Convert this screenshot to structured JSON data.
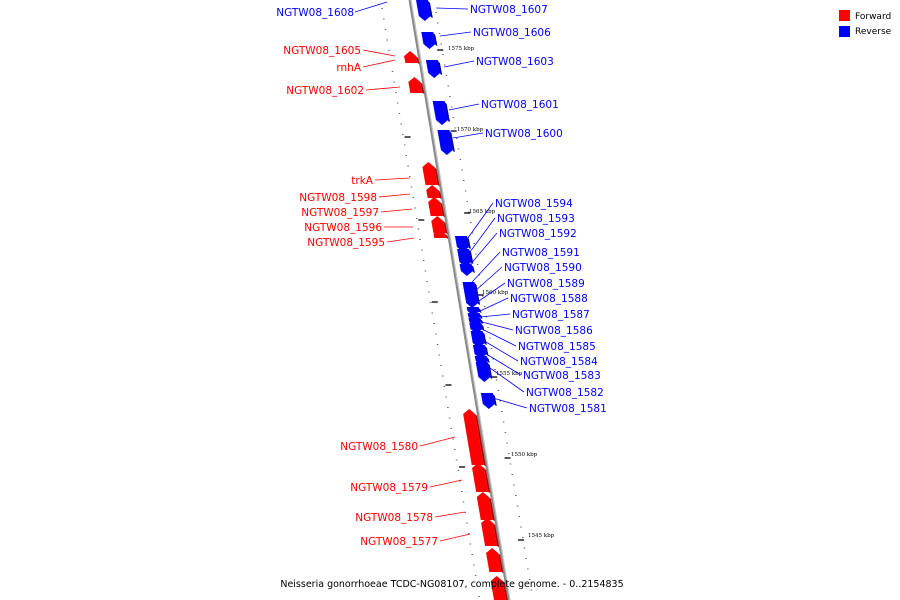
{
  "caption": "Neisseria gonorrhoeae TCDC-NG08107, complete genome. - 0..2154835",
  "legend": [
    {
      "label": "Forward",
      "color": "#ff0000"
    },
    {
      "label": "Reverse",
      "color": "#0000ff"
    }
  ],
  "colors": {
    "forward": "#ff0000",
    "reverse": "#0000ff",
    "backbone": "#808080"
  },
  "scale_ticks": [
    "1575 kbp",
    "1570 kbp",
    "1565 kbp",
    "1560 kbp",
    "1555 kbp",
    "1550 kbp",
    "1545 kbp"
  ],
  "forward_genes": [
    "NGTW08_1605",
    "rnhA",
    "NGTW08_1602",
    "trkA",
    "NGTW08_1598",
    "NGTW08_1597",
    "NGTW08_1596",
    "NGTW08_1595",
    "NGTW08_1580",
    "NGTW08_1579",
    "NGTW08_1578",
    "NGTW08_1577"
  ],
  "reverse_genes": [
    "NGTW08_1608",
    "NGTW08_1607",
    "NGTW08_1606",
    "NGTW08_1603",
    "NGTW08_1601",
    "NGTW08_1600",
    "NGTW08_1594",
    "NGTW08_1593",
    "NGTW08_1592",
    "NGTW08_1591",
    "NGTW08_1590",
    "NGTW08_1589",
    "NGTW08_1588",
    "NGTW08_1587",
    "NGTW08_1586",
    "NGTW08_1585",
    "NGTW08_1584",
    "NGTW08_1583",
    "NGTW08_1582",
    "NGTW08_1581"
  ]
}
